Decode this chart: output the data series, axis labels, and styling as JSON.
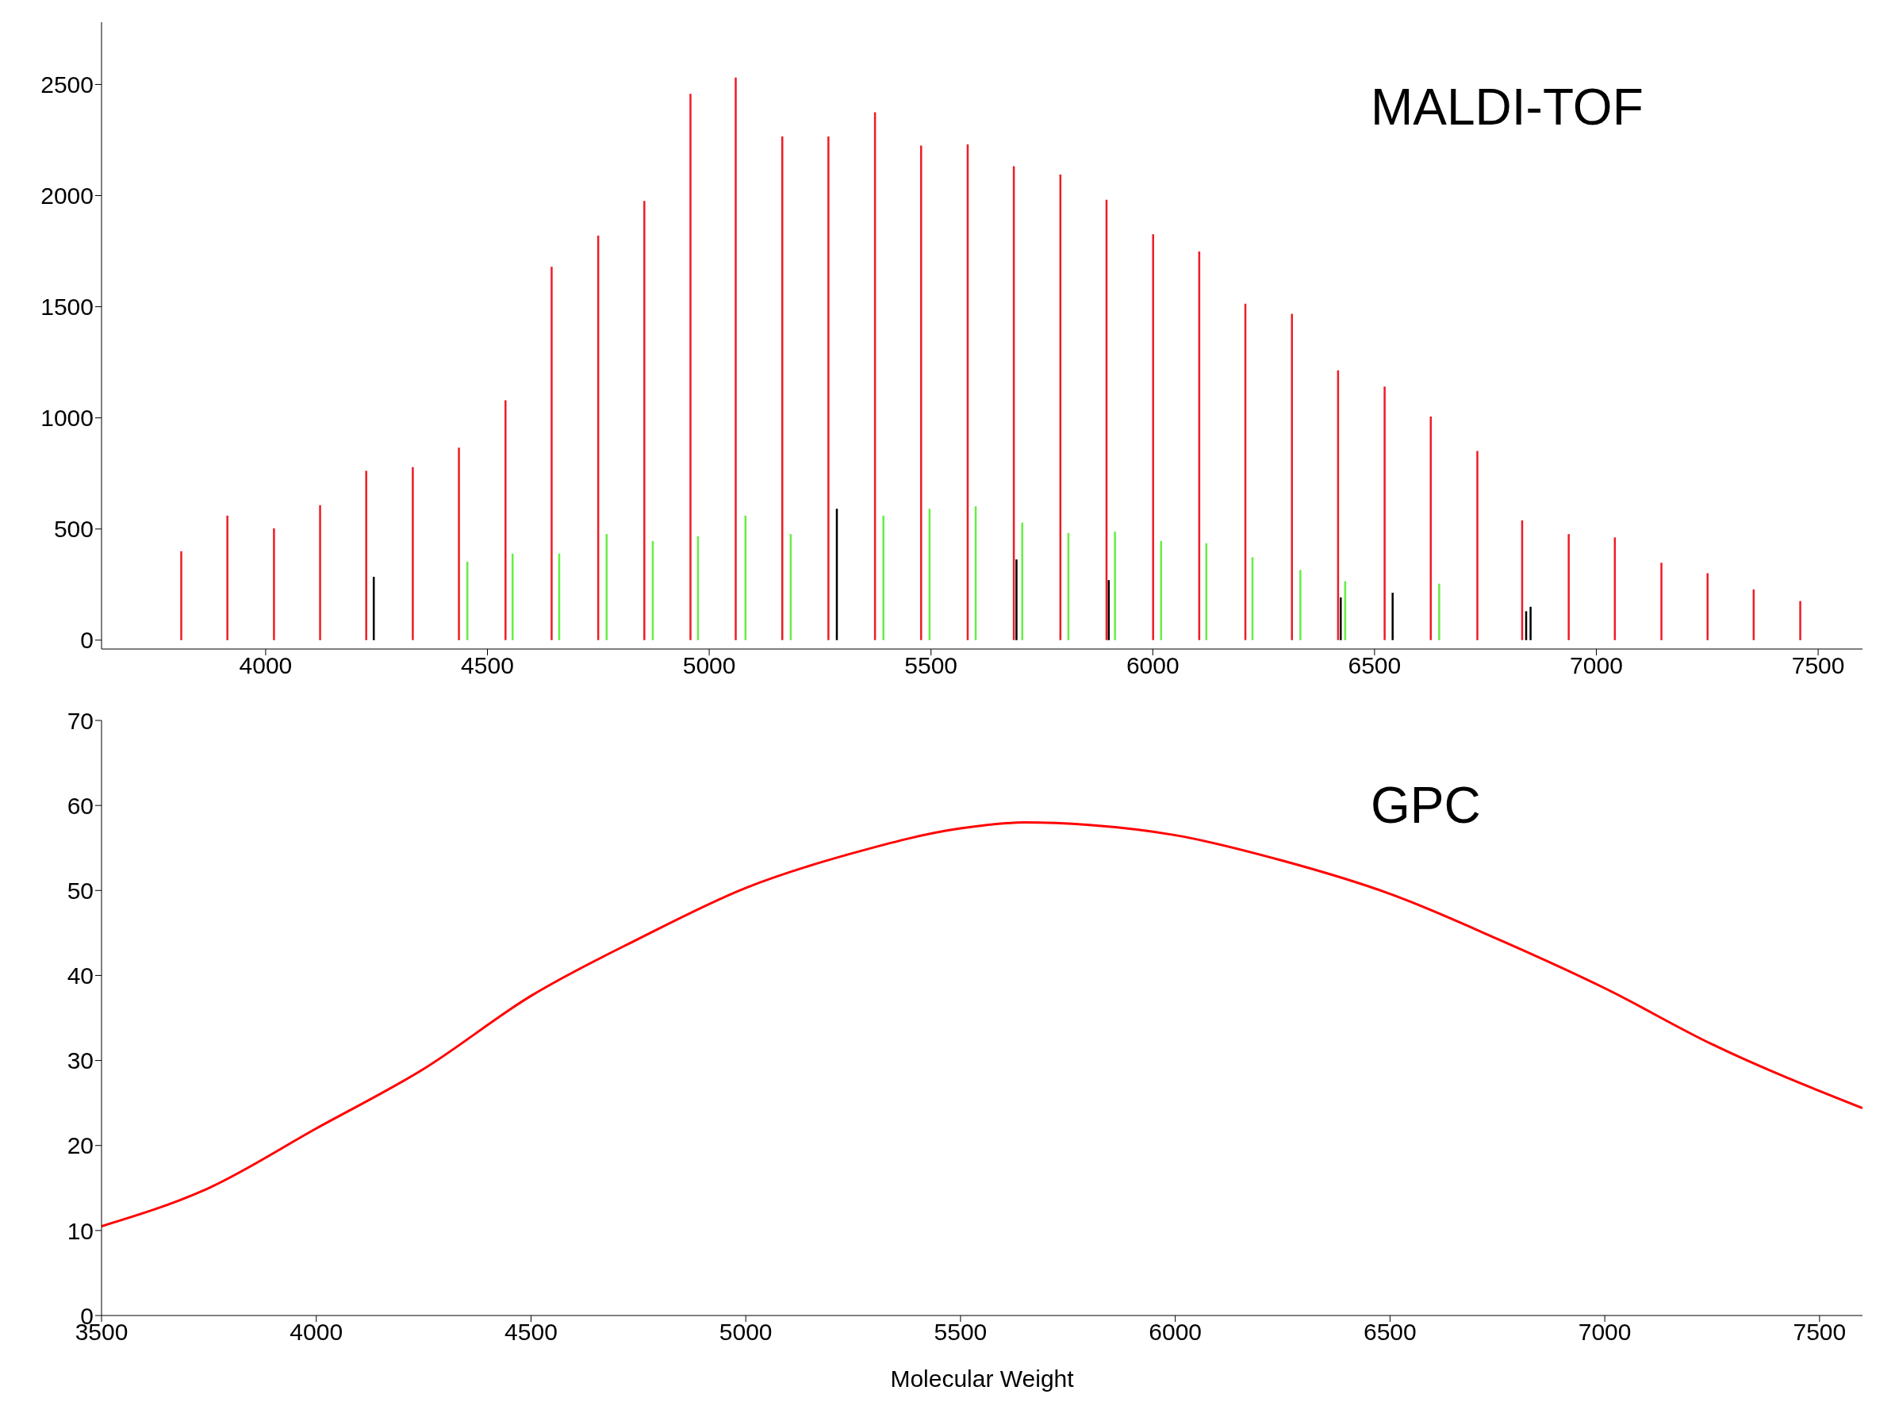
{
  "chart_data": [
    {
      "type": "bar",
      "annotations": [
        "MALDI-TOF"
      ],
      "xlim": [
        3630,
        7600
      ],
      "xticks": [
        4000,
        4500,
        5000,
        5500,
        6000,
        6500,
        7000,
        7500
      ],
      "ylim": [
        -40,
        2780
      ],
      "yticks": [
        0,
        500,
        1000,
        1500,
        2000,
        2500
      ],
      "grid": false,
      "legend": false,
      "series": [
        {
          "color": "#ee1c25",
          "x": [
            3810,
            3914,
            4019,
            4123,
            4227,
            4332,
            4436,
            4541,
            4645,
            4750,
            4854,
            4958,
            5060,
            5165,
            5269,
            5374,
            5478,
            5583,
            5687,
            5792,
            5896,
            6001,
            6105,
            6209,
            6314,
            6418,
            6523,
            6627,
            6732,
            6833,
            6938,
            7042,
            7147,
            7251,
            7355,
            7460
          ],
          "values": [
            400,
            560,
            503,
            607,
            762,
            778,
            866,
            1079,
            1680,
            1820,
            1976,
            2458,
            2531,
            2266,
            2266,
            2375,
            2225,
            2230,
            2132,
            2095,
            1981,
            1826,
            1748,
            1514,
            1468,
            1214,
            1141,
            1006,
            851,
            539,
            477,
            462,
            348,
            301,
            228,
            176
          ]
        },
        {
          "color": "#66ee44",
          "x": [
            4455,
            4557,
            4662,
            4769,
            4873,
            4975,
            5082,
            5184,
            5393,
            5497,
            5601,
            5706,
            5810,
            5915,
            6019,
            6121,
            6225,
            6333,
            6434,
            6646
          ],
          "values": [
            353,
            389,
            389,
            477,
            446,
            467,
            560,
            477,
            560,
            591,
            602,
            529,
            482,
            488,
            446,
            436,
            373,
            316,
            265,
            254
          ]
        },
        {
          "color": "#000000",
          "x": [
            4244,
            5288,
            5693,
            5901,
            6424,
            6541,
            6842,
            6852
          ],
          "values": [
            285,
            591,
            363,
            270,
            192,
            213,
            130,
            150
          ]
        }
      ]
    },
    {
      "type": "line",
      "annotations": [
        "GPC"
      ],
      "xlabel": "Molecular Weight",
      "xlim": [
        3500,
        7600
      ],
      "xticks": [
        3500,
        4000,
        4500,
        5000,
        5500,
        6000,
        6500,
        7000,
        7500
      ],
      "ylim": [
        0,
        70
      ],
      "yticks": [
        0,
        10,
        20,
        30,
        40,
        50,
        60,
        70
      ],
      "grid": false,
      "legend": false,
      "marker": "none",
      "series": [
        {
          "color": "#ff0000",
          "x": [
            3500,
            3750,
            4000,
            4250,
            4500,
            4750,
            5000,
            5250,
            5500,
            5650,
            5800,
            6000,
            6250,
            6500,
            6750,
            7000,
            7250,
            7600
          ],
          "values": [
            10.5,
            15,
            22,
            29,
            37.6,
            44.3,
            50.3,
            54.4,
            57.3,
            58,
            57.7,
            56.5,
            53.5,
            49.6,
            44.3,
            38.5,
            31.9,
            24.4
          ]
        }
      ]
    }
  ]
}
